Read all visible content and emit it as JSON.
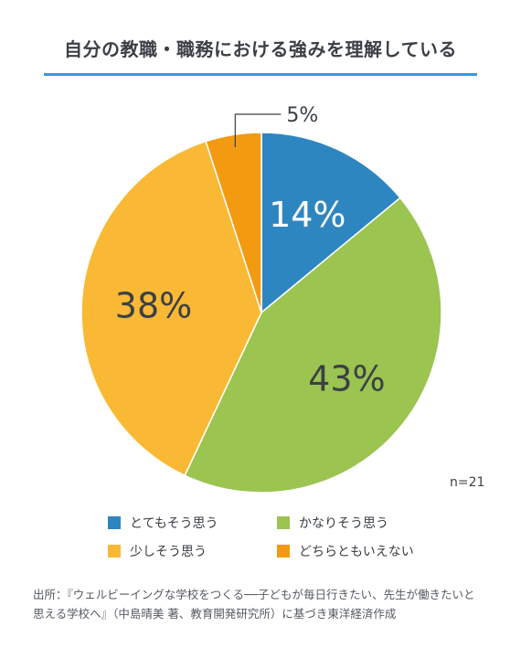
{
  "chart_data": {
    "type": "pie",
    "title": "自分の教職・職務における強みを理解している",
    "categories": [
      "とてもそう思う",
      "かなりそう思う",
      "少しそう思う",
      "どちらともいえない"
    ],
    "values": [
      14,
      43,
      38,
      5
    ],
    "labels": [
      "14%",
      "43%",
      "38%",
      "5%"
    ],
    "colors": [
      "#2e86c1",
      "#9bc450",
      "#f9b934",
      "#f39a11"
    ],
    "legend_placement": "bottom",
    "annotation": "n=21"
  },
  "source": {
    "line1": "出所：『ウェルビーイングな学校をつくる──子どもが毎日行きたい、先生が働きたいと",
    "line2": "思える学校へ』（中島晴美 著、教育開発研究所）に基づき東洋経済作成"
  }
}
